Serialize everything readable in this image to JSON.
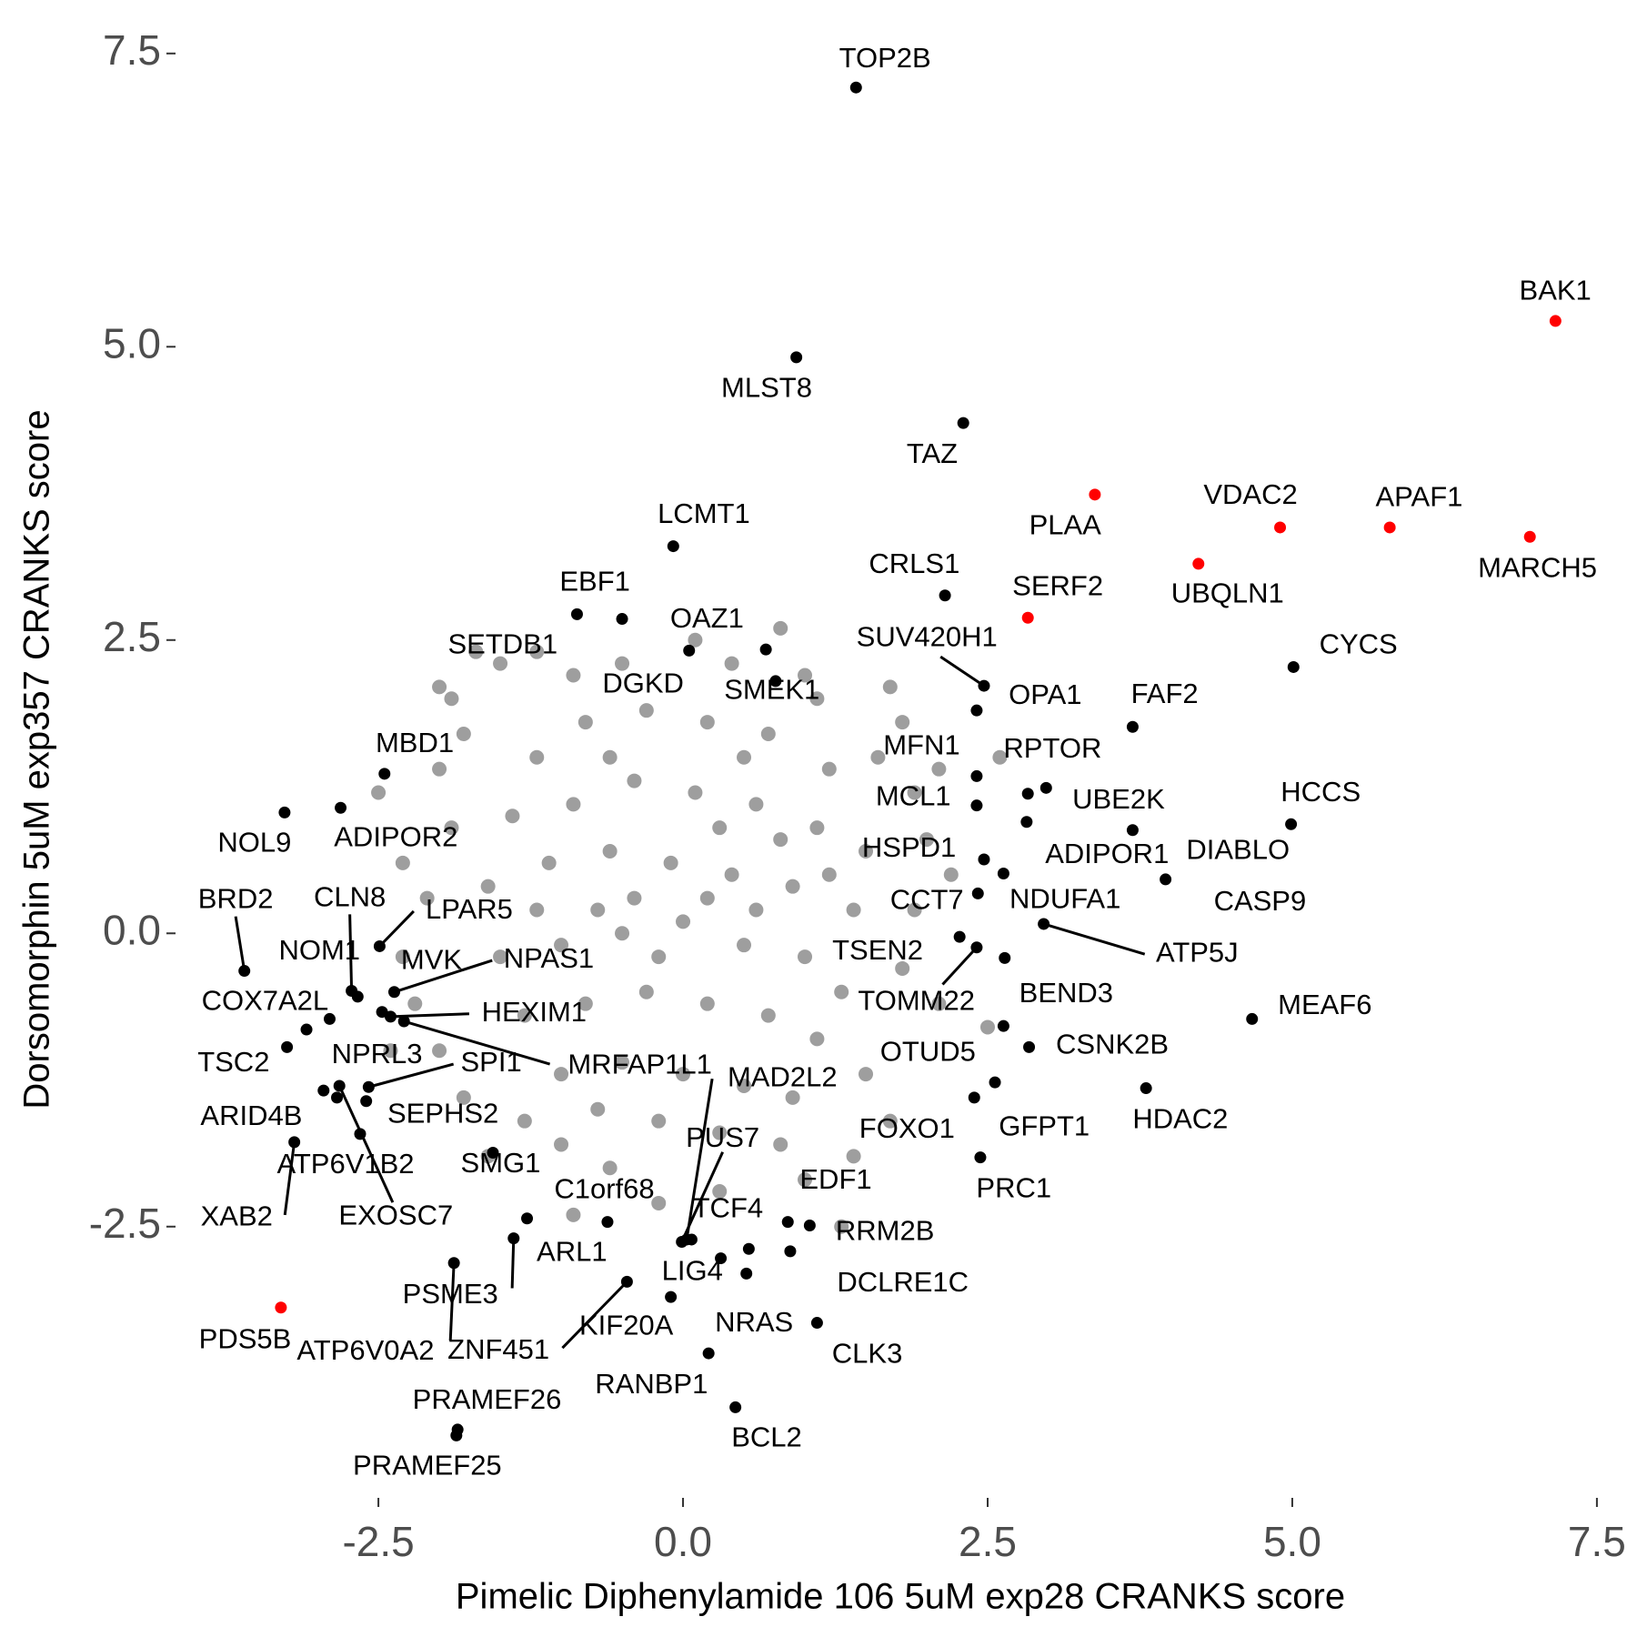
{
  "chart_data": {
    "type": "scatter",
    "x_label": "Pimelic Diphenylamide 106 5uM exp28 CRANKS score",
    "y_label": "Dorsomorphin 5uM exp357 CRANKS score",
    "xlim": [
      -4.15,
      7.65
    ],
    "ylim": [
      -4.75,
      7.7
    ],
    "xticks": [
      -2.5,
      {
        "value": 0,
        "label": "0.0"
      },
      2.5,
      {
        "value": 5,
        "label": "5.0"
      },
      7.5
    ],
    "yticks": [
      -2.5,
      {
        "value": 0,
        "label": "0.0"
      },
      2.5,
      {
        "value": 5,
        "label": "5.0"
      },
      7.5
    ],
    "series": [
      {
        "color": "#9e9e9e",
        "x": [
          -2.0,
          -1.9,
          -1.5,
          -1.2,
          -0.9,
          -0.5,
          0.1,
          0.4,
          1.0,
          1.1,
          1.7,
          1.8,
          1.6,
          1.9,
          2.1,
          2.0,
          2.2,
          1.9,
          1.8,
          2.1,
          1.5,
          1.7,
          1.4,
          1.0,
          0.8,
          0.3,
          -0.2,
          -0.6,
          -1.0,
          -1.3,
          -1.6,
          -1.8,
          -2.0,
          -2.2,
          -2.3,
          -2.1,
          -2.3,
          -1.9,
          -2.0,
          -1.8,
          -1.2,
          -0.8,
          -0.3,
          0.2,
          0.7,
          1.2,
          -1.4,
          -0.9,
          -0.4,
          0.1,
          0.6,
          1.1,
          1.5,
          -1.6,
          -1.1,
          -0.6,
          -0.1,
          0.4,
          0.9,
          1.4,
          -1.5,
          -1.0,
          -0.5,
          0.0,
          0.5,
          1.0,
          1.3,
          -1.3,
          -0.8,
          -0.3,
          0.2,
          0.7,
          1.1,
          -1.0,
          -0.5,
          0.0,
          0.5,
          0.9,
          -0.2,
          0.3,
          -0.7,
          -0.4,
          0.3,
          0.8,
          -0.7,
          0.6,
          -0.2,
          0.2,
          -1.2,
          1.2,
          -0.6,
          0.5,
          -2.5,
          -2.4,
          2.6,
          2.5,
          -1.7,
          0.8,
          1.3,
          -0.9
        ],
        "y": [
          2.1,
          2.0,
          2.3,
          2.4,
          2.2,
          2.3,
          2.5,
          2.3,
          2.2,
          2.0,
          2.1,
          1.8,
          1.5,
          1.2,
          1.4,
          0.8,
          0.5,
          0.2,
          -0.3,
          -0.6,
          -1.2,
          -1.6,
          -1.9,
          -2.1,
          -1.8,
          -2.2,
          -2.3,
          -2.0,
          -1.8,
          -1.6,
          -1.9,
          -1.4,
          -1.0,
          -0.6,
          -0.2,
          0.3,
          0.6,
          0.9,
          1.4,
          1.7,
          1.5,
          1.8,
          1.9,
          1.8,
          1.7,
          1.4,
          1.0,
          1.1,
          1.3,
          1.2,
          1.1,
          0.9,
          0.7,
          0.4,
          0.6,
          0.7,
          0.6,
          0.5,
          0.4,
          0.2,
          -0.2,
          -0.1,
          0.0,
          0.1,
          -0.1,
          -0.2,
          -0.5,
          -0.7,
          -0.6,
          -0.5,
          -0.6,
          -0.7,
          -0.9,
          -1.2,
          -1.1,
          -1.2,
          -1.3,
          -1.4,
          -1.6,
          -1.7,
          -1.5,
          0.3,
          0.9,
          0.8,
          0.2,
          0.2,
          -0.2,
          0.3,
          0.2,
          0.5,
          1.5,
          1.5,
          1.2,
          -1.0,
          1.5,
          -0.8,
          2.4,
          2.6,
          -2.5,
          -2.4
        ]
      },
      {
        "color": "#000000",
        "x": [
          1.42,
          0.93,
          2.3,
          -0.08,
          2.15,
          -0.87,
          -0.5,
          0.05,
          0.68,
          0.76,
          5.01,
          2.47,
          2.41,
          3.69,
          2.41,
          2.98,
          -2.45,
          -3.27,
          -2.81,
          2.41,
          2.83,
          2.82,
          4.99,
          3.69,
          2.47,
          3.96,
          2.63,
          2.42,
          2.96,
          2.27,
          2.41,
          2.64,
          4.67,
          2.63,
          2.84,
          3.8,
          2.56,
          2.39,
          2.44,
          -3.6,
          -2.72,
          -2.49,
          -2.67,
          -2.47,
          -2.37,
          -2.9,
          -2.4,
          -2.29,
          -3.25,
          -3.09,
          -2.58,
          -2.95,
          -2.6,
          -2.65,
          -2.82,
          -3.19,
          -1.56,
          -1.28,
          -0.62,
          0.03,
          -0.01,
          0.07,
          0.86,
          1.04,
          0.88,
          0.31,
          0.52,
          1.1,
          -0.1,
          -0.46,
          -1.39,
          -1.88,
          0.21,
          0.43,
          -1.85,
          -1.86,
          0.54,
          -2.84
        ],
        "y": [
          7.21,
          4.91,
          4.35,
          3.3,
          2.88,
          2.72,
          2.68,
          2.41,
          2.42,
          2.15,
          2.27,
          2.11,
          1.9,
          1.76,
          1.34,
          1.24,
          1.36,
          1.03,
          1.07,
          1.09,
          1.19,
          0.95,
          0.93,
          0.88,
          0.63,
          0.46,
          0.51,
          0.34,
          0.08,
          -0.03,
          -0.12,
          -0.21,
          -0.73,
          -0.79,
          -0.97,
          -1.32,
          -1.27,
          -1.4,
          -1.91,
          -0.32,
          -0.49,
          -0.11,
          -0.54,
          -0.67,
          -0.5,
          -0.73,
          -0.71,
          -0.75,
          -0.97,
          -0.82,
          -1.31,
          -1.34,
          -1.43,
          -1.71,
          -1.3,
          -1.78,
          -1.87,
          -2.43,
          -2.46,
          -2.61,
          -2.63,
          -2.61,
          -2.46,
          -2.49,
          -2.71,
          -2.77,
          -2.9,
          -3.32,
          -3.1,
          -2.97,
          -2.6,
          -2.81,
          -3.58,
          -4.04,
          -4.23,
          -4.28,
          -2.69,
          -1.4
        ],
        "labels": [
          "TOP2B",
          "MLST8",
          "TAZ",
          "LCMT1",
          "CRLS1",
          "EBF1",
          "SETDB1",
          "OAZ1",
          "DGKD",
          "SMEK1",
          "CYCS",
          "SUV420H1",
          "OPA1",
          "FAF2",
          "MFN1",
          "RPTOR",
          "MBD1",
          "NOL9",
          "ADIPOR2",
          "MCL1",
          "UBE2K",
          "ADIPOR1",
          "HCCS",
          "DIABLO",
          "HSPD1",
          "CASP9",
          "NDUFA1",
          "CCT7",
          "ATP5J",
          "TSEN2",
          "TOMM22",
          "BEND3",
          "MEAF6",
          "OTUD5",
          "CSNK2B",
          "HDAC2",
          "GFPT1",
          "FOXO1",
          "PRC1",
          "BRD2",
          "CLN8",
          "LPAR5",
          "NOM1",
          "MVK",
          "NPAS1",
          "COX7A2L",
          "HEXIM1",
          "MRFAP1L1",
          "TSC2",
          "NPRL3",
          "SPI1",
          "ARID4B",
          "SEPHS2",
          "ATP6V1B2",
          "EXOSC7",
          "XAB2",
          "SMG1",
          "ARL1",
          "C1orf68",
          "MAD2L2",
          "PUS7",
          "TCF4",
          "EDF1",
          "RRM2B",
          "DCLRE1C",
          "LIG4",
          "NRAS",
          "CLK3",
          "KIF20A",
          "ZNF451",
          "PSME3",
          "ATP6V0A2",
          "RANBP1",
          "BCL2",
          "PRAMEF26",
          "PRAMEF25",
          null,
          null
        ]
      },
      {
        "color": "#ff0000",
        "x": [
          7.16,
          3.38,
          4.9,
          5.8,
          6.95,
          4.23,
          2.83,
          -3.3
        ],
        "y": [
          5.22,
          3.74,
          3.46,
          3.46,
          3.38,
          3.15,
          2.69,
          -3.19
        ],
        "labels": [
          "BAK1",
          "PLAA",
          "VDAC2",
          "APAF1",
          "MARCH5",
          "UBQLN1",
          "SERF2",
          "PDS5B"
        ]
      }
    ]
  }
}
